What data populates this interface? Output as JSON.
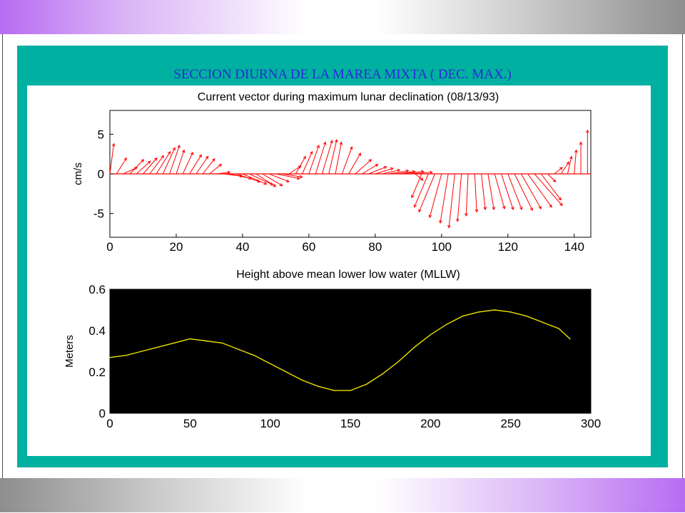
{
  "slide": {
    "title": "SECCION DIURNA DE  LA  MAREA MIXTA  ( DEC. MAX.)",
    "colors": {
      "panel": "#00b0a0",
      "title": "#2a2ad8",
      "vectors": "#ff0000",
      "height_line": "#e8e000",
      "height_background": "#000000"
    }
  },
  "chart_data": [
    {
      "type": "line",
      "subtype": "vector stick plot",
      "title": "Current vector during maximum lunar declination (08/13/93)",
      "xlabel": "",
      "ylabel": "cm/s",
      "xlim": [
        0,
        145
      ],
      "ylim": [
        -8,
        8
      ],
      "xticks": [
        0,
        20,
        40,
        60,
        80,
        100,
        120,
        140
      ],
      "yticks": [
        5,
        0,
        -5
      ],
      "grid": false,
      "series": [
        {
          "x": [
            0,
            2,
            4,
            6,
            8,
            10,
            12,
            14,
            16,
            18,
            20,
            22,
            24,
            26,
            28,
            30,
            32,
            34,
            36,
            38,
            40,
            42,
            44,
            46,
            48,
            50,
            52,
            54,
            56,
            58,
            60,
            62,
            64,
            66,
            68,
            70,
            72,
            74,
            76,
            78,
            80,
            82,
            84,
            86,
            88,
            90,
            92,
            94,
            96,
            98,
            100,
            102,
            104,
            106,
            108,
            110,
            112,
            114,
            116,
            118,
            120,
            122,
            124,
            126,
            128,
            130,
            132,
            134,
            136,
            138,
            140,
            142,
            144
          ],
          "u": [
            1.0,
            2.5,
            3.5,
            3.5,
            3.5,
            3.5,
            3.5,
            3.5,
            3.0,
            2.5,
            2.0,
            2.5,
            3.0,
            3.0,
            3.0,
            3.0,
            3.5,
            5.0,
            5.5,
            6.0,
            6.0,
            6.0,
            5.0,
            5.0,
            5.0,
            6.0,
            5.0,
            3.0,
            2.5,
            2.5,
            2.5,
            2.5,
            2.5,
            2.0,
            1.5,
            2.5,
            3.0,
            4.0,
            4.0,
            4.5,
            4.5,
            4.5,
            5.0,
            5.0,
            5.5,
            6.0,
            2.0,
            -2.5,
            -3.5,
            -4.0,
            -3.0,
            -2.0,
            -1.5,
            -1.0,
            -0.5,
            0.5,
            1.0,
            1.5,
            2.5,
            3.0,
            3.5,
            4.5,
            5.0,
            6.0,
            7.0,
            5.0,
            2.0,
            2.0,
            2.0,
            1.0,
            0.5,
            0.0,
            0.0
          ],
          "v": [
            3.8,
            2.0,
            0.8,
            1.8,
            1.6,
            2.0,
            2.3,
            2.8,
            3.3,
            3.6,
            3.0,
            2.7,
            2.4,
            2.2,
            1.9,
            1.2,
            0.2,
            -0.3,
            -0.6,
            -1.0,
            -1.3,
            -1.4,
            -1.6,
            -1.5,
            -1.0,
            -0.6,
            -0.4,
            1.0,
            2.2,
            2.8,
            3.6,
            4.0,
            4.2,
            4.3,
            4.0,
            3.4,
            2.6,
            1.8,
            1.2,
            0.9,
            0.7,
            0.5,
            0.4,
            0.3,
            0.3,
            0.2,
            -0.8,
            -3.0,
            -4.2,
            -4.8,
            -5.5,
            -6.2,
            -6.8,
            -6.0,
            -5.3,
            -4.8,
            -4.5,
            -4.5,
            -4.4,
            -4.5,
            -4.5,
            -4.6,
            -4.4,
            -4.2,
            -4.0,
            -3.3,
            -1.0,
            0.8,
            1.5,
            2.2,
            3.0,
            4.0,
            5.5
          ]
        }
      ]
    },
    {
      "type": "line",
      "title": "Height above mean lower low water (MLLW)",
      "xlabel": "",
      "ylabel": "Meters",
      "xlim": [
        0,
        300
      ],
      "ylim": [
        0,
        0.6
      ],
      "xticks": [
        0,
        50,
        100,
        150,
        200,
        250,
        300
      ],
      "yticks": [
        0,
        0.2,
        0.4,
        0.6
      ],
      "grid": false,
      "series": [
        {
          "x": [
            0,
            10,
            20,
            30,
            40,
            50,
            60,
            70,
            80,
            90,
            100,
            110,
            120,
            130,
            140,
            150,
            160,
            170,
            180,
            190,
            200,
            210,
            220,
            230,
            240,
            250,
            260,
            270,
            280,
            287
          ],
          "y": [
            0.27,
            0.28,
            0.3,
            0.32,
            0.34,
            0.36,
            0.35,
            0.34,
            0.31,
            0.28,
            0.24,
            0.2,
            0.16,
            0.13,
            0.11,
            0.11,
            0.14,
            0.19,
            0.25,
            0.32,
            0.38,
            0.43,
            0.47,
            0.49,
            0.5,
            0.49,
            0.47,
            0.44,
            0.41,
            0.36
          ]
        }
      ]
    }
  ]
}
